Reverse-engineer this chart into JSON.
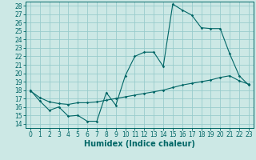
{
  "xlabel": "Humidex (Indice chaleur)",
  "bg_color": "#cce8e5",
  "grid_color": "#99cccc",
  "line_color": "#006666",
  "xlim": [
    -0.5,
    23.5
  ],
  "ylim": [
    13.5,
    28.5
  ],
  "xticks": [
    0,
    1,
    2,
    3,
    4,
    5,
    6,
    7,
    8,
    9,
    10,
    11,
    12,
    13,
    14,
    15,
    16,
    17,
    18,
    19,
    20,
    21,
    22,
    23
  ],
  "yticks": [
    14,
    15,
    16,
    17,
    18,
    19,
    20,
    21,
    22,
    23,
    24,
    25,
    26,
    27,
    28
  ],
  "curve1_x": [
    0,
    1,
    2,
    3,
    4,
    5,
    6,
    7,
    8,
    9,
    10,
    11,
    12,
    13,
    14,
    15,
    16,
    17,
    18,
    19,
    20,
    21,
    22,
    23
  ],
  "curve1_y": [
    18.0,
    16.7,
    15.6,
    16.0,
    14.9,
    15.0,
    14.3,
    14.3,
    17.7,
    16.2,
    19.7,
    22.0,
    22.5,
    22.5,
    20.8,
    28.2,
    27.5,
    26.9,
    25.4,
    25.3,
    25.3,
    22.3,
    19.7,
    18.6
  ],
  "curve2_x": [
    0,
    1,
    2,
    3,
    4,
    5,
    6,
    7,
    8,
    9,
    10,
    11,
    12,
    13,
    14,
    15,
    16,
    17,
    18,
    19,
    20,
    21,
    22,
    23
  ],
  "curve2_y": [
    17.9,
    17.1,
    16.6,
    16.4,
    16.3,
    16.5,
    16.5,
    16.6,
    16.8,
    17.0,
    17.2,
    17.4,
    17.6,
    17.8,
    18.0,
    18.3,
    18.6,
    18.8,
    19.0,
    19.2,
    19.5,
    19.7,
    19.1,
    18.7
  ],
  "xlabel_fontsize": 7,
  "tick_fontsize": 5.5,
  "marker_size": 1.8,
  "line_width": 0.8
}
